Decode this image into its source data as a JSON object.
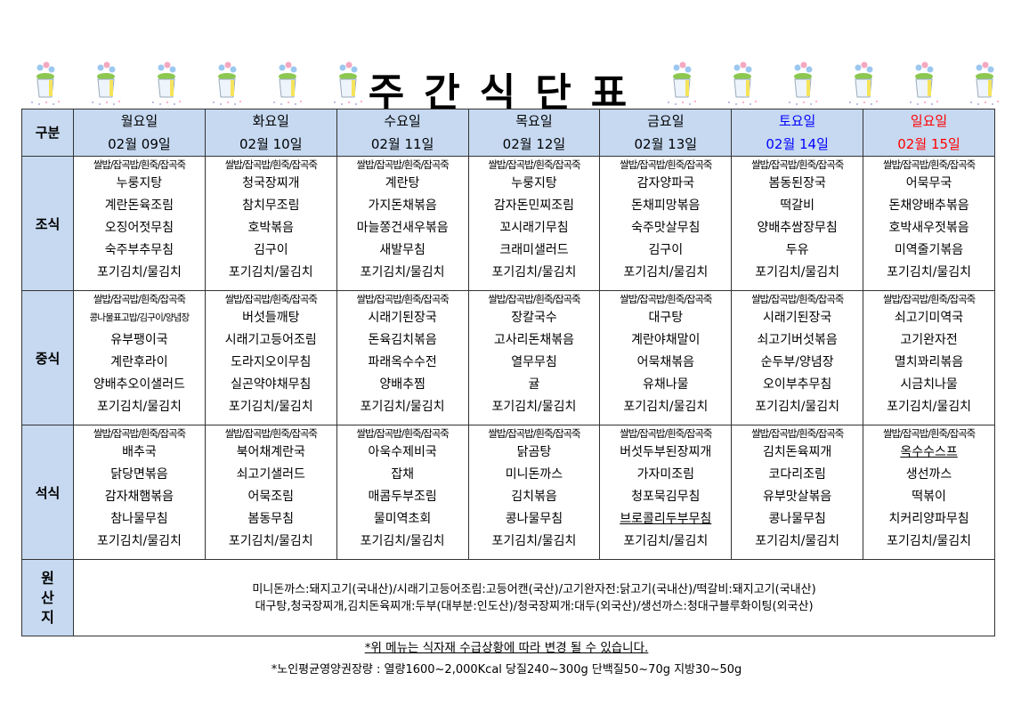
{
  "title": "주간식단표",
  "colors": {
    "header_bg": "#c6d9f1",
    "saturday": "#0000ff",
    "sunday": "#ff0000"
  },
  "corner_label": "구분",
  "days": [
    {
      "name": "월요일",
      "date": "02월 09일"
    },
    {
      "name": "화요일",
      "date": "02월 10일"
    },
    {
      "name": "수요일",
      "date": "02월 11일"
    },
    {
      "name": "목요일",
      "date": "02월 12일"
    },
    {
      "name": "금요일",
      "date": "02월 13일"
    },
    {
      "name": "토요일",
      "date": "02월 14일"
    },
    {
      "name": "일요일",
      "date": "02월 15일"
    }
  ],
  "meals": [
    {
      "label": "조식",
      "rice": "쌀밥/잡곡밥/흰죽/잡곡죽",
      "menus": [
        [
          "누룽지탕",
          "계란돈육조림",
          "오징어젓무침",
          "숙주부추무침",
          "포기김치/물김치"
        ],
        [
          "청국장찌개",
          "참치무조림",
          "호박볶음",
          "김구이",
          "포기김치/물김치"
        ],
        [
          "계란탕",
          "가지돈채볶음",
          "마늘쫑건새우볶음",
          "새발무침",
          "포기김치/물김치"
        ],
        [
          "누룽지탕",
          "감자돈민찌조림",
          "꼬시래기무침",
          "크래미샐러드",
          "포기김치/물김치"
        ],
        [
          "감자양파국",
          "돈채피망볶음",
          "숙주맛살무침",
          "김구이",
          "포기김치/물김치"
        ],
        [
          "봄동된장국",
          "떡갈비",
          "양배추쌈장무침",
          "두유",
          "포기김치/물김치"
        ],
        [
          "어묵무국",
          "돈채양배추볶음",
          "호박새우젓볶음",
          "미역줄기볶음",
          "포기김치/물김치"
        ]
      ]
    },
    {
      "label": "중식",
      "rice": "쌀밥/잡곡밥/흰죽/잡곡죽",
      "menus": [
        [
          "콩나물표고밥/김구이/양념장",
          "유부팽이국",
          "계란후라이",
          "양배추오이샐러드",
          "포기김치/물김치"
        ],
        [
          "버섯들깨탕",
          "시래기고등어조림",
          "도라지오이무침",
          "실곤약야채무침",
          "포기김치/물김치"
        ],
        [
          "시래기된장국",
          "돈육김치볶음",
          "파래옥수수전",
          "양배추찜",
          "포기김치/물김치"
        ],
        [
          "장칼국수",
          "고사리돈채볶음",
          "열무무침",
          "귤",
          "포기김치/물김치"
        ],
        [
          "대구탕",
          "계란야채말이",
          "어묵채볶음",
          "유채나물",
          "포기김치/물김치"
        ],
        [
          "시래기된장국",
          "쇠고기버섯볶음",
          "순두부/양념장",
          "오이부추무침",
          "포기김치/물김치"
        ],
        [
          "쇠고기미역국",
          "고기완자전",
          "멸치꽈리볶음",
          "시금치나물",
          "포기김치/물김치"
        ]
      ]
    },
    {
      "label": "석식",
      "rice": "쌀밥/잡곡밥/흰죽/잡곡죽",
      "menus": [
        [
          "배추국",
          "닭당면볶음",
          "감자채햄볶음",
          "참나물무침",
          "포기김치/물김치"
        ],
        [
          "북어채계란국",
          "쇠고기샐러드",
          "어묵조림",
          "봄동무침",
          "포기김치/물김치"
        ],
        [
          "아욱수제비국",
          "잡채",
          "매콤두부조림",
          "물미역초회",
          "포기김치/물김치"
        ],
        [
          "닭곰탕",
          "미니돈까스",
          "김치볶음",
          "콩나물무침",
          "포기김치/물김치"
        ],
        [
          "버섯두부된장찌개",
          "가자미조림",
          "청포묵김무침",
          "브로콜리두부무침",
          "포기김치/물김치"
        ],
        [
          "김치돈육찌개",
          "코다리조림",
          "유부맛살볶음",
          "콩나물무침",
          "포기김치/물김치"
        ],
        [
          "옥수수스프",
          "생선까스",
          "떡볶이",
          "치커리양파무침",
          "포기김치/물김치"
        ]
      ]
    }
  ],
  "origin": {
    "label": [
      "원",
      "산",
      "지"
    ],
    "lines": [
      "미니돈까스:돼지고기(국내산)/시래기고등어조림:고등어캔(국산)/고기완자전:닭고기(국내산)/떡갈비:돼지고기(국내산)",
      "대구탕,청국장찌개,김치돈육찌개:두부(대부분:인도산)/청국장찌개:대두(외국산)/생선까스:청대구블루화이팅(외국산)"
    ]
  },
  "notes": [
    "*위 메뉴는 식자재 수급상황에 따라 변경 될 수 있습니다.",
    "*노인평균영양권장량 : 열량1600~2,000Kcal 당질240~300g 단백질50~70g 지방30~50g"
  ]
}
